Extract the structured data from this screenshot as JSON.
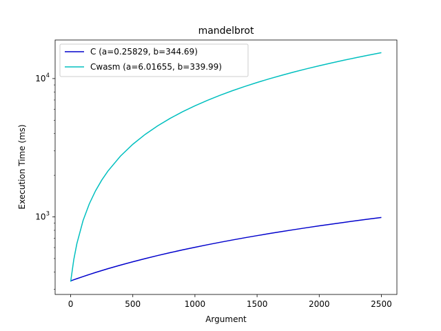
{
  "chart_data": {
    "type": "line",
    "title": "mandelbrot",
    "xlabel": "Argument",
    "ylabel": "Execution Time (ms)",
    "xlim": [
      -125,
      2625
    ],
    "ylim": [
      275,
      19000
    ],
    "yscale": "log",
    "grid": false,
    "legend_placement": "top-left",
    "x_ticks": [
      0,
      500,
      1000,
      1500,
      2000,
      2500
    ],
    "x_tick_labels": [
      "0",
      "500",
      "1000",
      "1500",
      "2000",
      "2500"
    ],
    "y_ticks": [
      1000,
      10000
    ],
    "y_tick_labels": [
      {
        "base": "10",
        "exp": "3"
      },
      {
        "base": "10",
        "exp": "4"
      }
    ],
    "x": [
      0,
      25,
      50,
      100,
      150,
      200,
      250,
      300,
      400,
      500,
      600,
      700,
      800,
      900,
      1000,
      1100,
      1200,
      1300,
      1400,
      1500,
      1600,
      1700,
      1800,
      1900,
      2000,
      2100,
      2200,
      2300,
      2400,
      2500
    ],
    "series": [
      {
        "name": "C (a=0.25829, b=344.69)",
        "color": "#0000cc",
        "values": [
          344.69,
          351.14,
          357.6,
          370.52,
          383.43,
          396.35,
          409.26,
          422.18,
          448.01,
          473.84,
          499.66,
          525.49,
          551.32,
          577.15,
          602.98,
          628.81,
          654.64,
          680.47,
          706.3,
          732.13,
          757.95,
          783.78,
          809.61,
          835.44,
          861.27,
          887.1,
          912.93,
          938.76,
          964.59,
          990.42
        ]
      },
      {
        "name": "Cwasm (a=6.01655, b=339.99)",
        "color": "#00bfbf",
        "values": [
          339.99,
          490.4,
          640.82,
          941.65,
          1242.47,
          1543.3,
          1844.13,
          2144.96,
          2746.61,
          3348.27,
          3949.92,
          4551.58,
          5153.23,
          5754.89,
          6356.54,
          6958.2,
          7559.85,
          8161.51,
          8763.16,
          9364.82,
          9966.47,
          10568.13,
          11169.78,
          11771.44,
          12373.09,
          12974.75,
          13576.4,
          14178.06,
          14779.71,
          15381.37
        ]
      }
    ]
  }
}
